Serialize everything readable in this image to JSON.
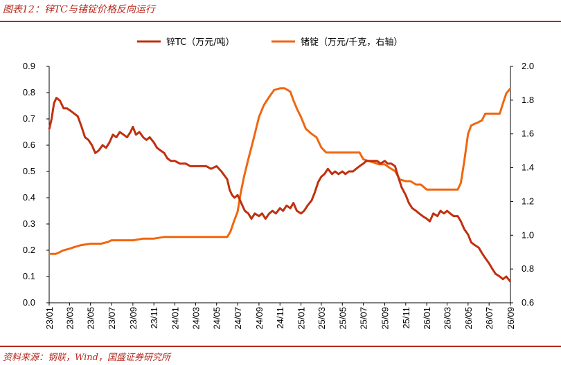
{
  "figure_title": "图表12：锌TC与锗锭价格反向运行",
  "source_note": "资料来源：钢联，Wind，国盛证券研究所",
  "colors": {
    "accent": "#b5281c",
    "zinc_tc": "#c0300e",
    "germanium": "#f0660e"
  },
  "chart_data": {
    "type": "line",
    "title": "",
    "legend_position": "top-center",
    "grid": false,
    "x_axis": {
      "type": "date",
      "range": [
        "2023-01",
        "2026-09"
      ],
      "tick_labels": [
        "23/01",
        "23/03",
        "23/05",
        "23/07",
        "23/09",
        "23/11",
        "24/01",
        "24/03",
        "24/05",
        "24/07",
        "24/09",
        "24/11",
        "25/01",
        "25/03",
        "25/05",
        "25/07",
        "25/09",
        "25/11",
        "26/01",
        "26/03",
        "26/05",
        "26/07",
        "26/09"
      ]
    },
    "y_left": {
      "range": [
        0,
        0.9
      ],
      "ticks": [
        "0.0",
        "0.1",
        "0.2",
        "0.3",
        "0.4",
        "0.5",
        "0.6",
        "0.7",
        "0.8",
        "0.9"
      ]
    },
    "y_right": {
      "range": [
        0.6,
        2.0
      ],
      "ticks": [
        "0.6",
        "0.8",
        "1.0",
        "1.2",
        "1.4",
        "1.6",
        "1.8",
        "2.0"
      ]
    },
    "series": [
      {
        "name": "锌TC（万元/吨）",
        "axis": "left",
        "color": "#c0300e",
        "points": [
          [
            "2023-01-01",
            0.66
          ],
          [
            "2023-01-08",
            0.7
          ],
          [
            "2023-01-15",
            0.76
          ],
          [
            "2023-01-22",
            0.78
          ],
          [
            "2023-02-01",
            0.77
          ],
          [
            "2023-02-12",
            0.74
          ],
          [
            "2023-02-22",
            0.74
          ],
          [
            "2023-03-05",
            0.73
          ],
          [
            "2023-03-15",
            0.72
          ],
          [
            "2023-03-25",
            0.71
          ],
          [
            "2023-04-05",
            0.67
          ],
          [
            "2023-04-15",
            0.63
          ],
          [
            "2023-04-25",
            0.62
          ],
          [
            "2023-05-05",
            0.6
          ],
          [
            "2023-05-15",
            0.57
          ],
          [
            "2023-05-25",
            0.58
          ],
          [
            "2023-06-05",
            0.6
          ],
          [
            "2023-06-15",
            0.59
          ],
          [
            "2023-06-25",
            0.61
          ],
          [
            "2023-07-05",
            0.64
          ],
          [
            "2023-07-15",
            0.63
          ],
          [
            "2023-07-25",
            0.65
          ],
          [
            "2023-08-05",
            0.64
          ],
          [
            "2023-08-15",
            0.63
          ],
          [
            "2023-08-25",
            0.65
          ],
          [
            "2023-09-01",
            0.67
          ],
          [
            "2023-09-10",
            0.64
          ],
          [
            "2023-09-20",
            0.65
          ],
          [
            "2023-10-01",
            0.63
          ],
          [
            "2023-10-10",
            0.62
          ],
          [
            "2023-10-20",
            0.63
          ],
          [
            "2023-11-01",
            0.61
          ],
          [
            "2023-11-10",
            0.59
          ],
          [
            "2023-11-20",
            0.58
          ],
          [
            "2023-12-01",
            0.57
          ],
          [
            "2023-12-10",
            0.55
          ],
          [
            "2023-12-20",
            0.54
          ],
          [
            "2024-01-01",
            0.54
          ],
          [
            "2024-01-15",
            0.53
          ],
          [
            "2024-02-01",
            0.53
          ],
          [
            "2024-02-15",
            0.52
          ],
          [
            "2024-03-01",
            0.52
          ],
          [
            "2024-03-15",
            0.52
          ],
          [
            "2024-04-01",
            0.52
          ],
          [
            "2024-04-15",
            0.51
          ],
          [
            "2024-05-01",
            0.52
          ],
          [
            "2024-05-15",
            0.5
          ],
          [
            "2024-06-01",
            0.47
          ],
          [
            "2024-06-08",
            0.43
          ],
          [
            "2024-06-15",
            0.41
          ],
          [
            "2024-06-22",
            0.4
          ],
          [
            "2024-07-01",
            0.41
          ],
          [
            "2024-07-08",
            0.39
          ],
          [
            "2024-07-15",
            0.37
          ],
          [
            "2024-07-22",
            0.35
          ],
          [
            "2024-08-01",
            0.34
          ],
          [
            "2024-08-10",
            0.32
          ],
          [
            "2024-08-20",
            0.34
          ],
          [
            "2024-09-01",
            0.33
          ],
          [
            "2024-09-10",
            0.34
          ],
          [
            "2024-09-20",
            0.32
          ],
          [
            "2024-10-01",
            0.34
          ],
          [
            "2024-10-10",
            0.35
          ],
          [
            "2024-10-20",
            0.34
          ],
          [
            "2024-11-01",
            0.36
          ],
          [
            "2024-11-10",
            0.35
          ],
          [
            "2024-11-20",
            0.37
          ],
          [
            "2024-12-01",
            0.36
          ],
          [
            "2024-12-10",
            0.38
          ],
          [
            "2024-12-20",
            0.35
          ],
          [
            "2025-01-01",
            0.34
          ],
          [
            "2025-01-10",
            0.35
          ],
          [
            "2025-01-20",
            0.37
          ],
          [
            "2025-02-01",
            0.39
          ],
          [
            "2025-02-10",
            0.42
          ],
          [
            "2025-02-20",
            0.46
          ],
          [
            "2025-03-01",
            0.48
          ],
          [
            "2025-03-10",
            0.49
          ],
          [
            "2025-03-20",
            0.51
          ],
          [
            "2025-04-01",
            0.49
          ],
          [
            "2025-04-10",
            0.5
          ],
          [
            "2025-04-20",
            0.49
          ],
          [
            "2025-05-01",
            0.5
          ],
          [
            "2025-05-10",
            0.49
          ],
          [
            "2025-05-20",
            0.5
          ],
          [
            "2025-06-01",
            0.5
          ],
          [
            "2025-06-10",
            0.51
          ],
          [
            "2025-06-20",
            0.52
          ],
          [
            "2025-07-01",
            0.53
          ],
          [
            "2025-07-10",
            0.54
          ],
          [
            "2025-07-20",
            0.54
          ],
          [
            "2025-08-01",
            0.54
          ],
          [
            "2025-08-10",
            0.54
          ],
          [
            "2025-08-20",
            0.53
          ],
          [
            "2025-09-01",
            0.54
          ],
          [
            "2025-09-10",
            0.53
          ],
          [
            "2025-09-20",
            0.53
          ],
          [
            "2025-10-01",
            0.52
          ],
          [
            "2025-10-10",
            0.48
          ],
          [
            "2025-10-20",
            0.44
          ],
          [
            "2025-11-01",
            0.41
          ],
          [
            "2025-11-10",
            0.38
          ],
          [
            "2025-11-20",
            0.36
          ],
          [
            "2025-12-01",
            0.35
          ],
          [
            "2025-12-10",
            0.34
          ],
          [
            "2025-12-20",
            0.33
          ],
          [
            "2026-01-01",
            0.32
          ],
          [
            "2026-01-10",
            0.31
          ],
          [
            "2026-01-20",
            0.34
          ],
          [
            "2026-02-01",
            0.33
          ],
          [
            "2026-02-10",
            0.35
          ],
          [
            "2026-02-20",
            0.34
          ],
          [
            "2026-03-01",
            0.35
          ],
          [
            "2026-03-10",
            0.34
          ],
          [
            "2026-03-20",
            0.33
          ],
          [
            "2026-04-01",
            0.33
          ],
          [
            "2026-04-10",
            0.31
          ],
          [
            "2026-04-20",
            0.28
          ],
          [
            "2026-05-01",
            0.26
          ],
          [
            "2026-05-10",
            0.23
          ],
          [
            "2026-05-20",
            0.22
          ],
          [
            "2026-06-01",
            0.21
          ],
          [
            "2026-06-10",
            0.19
          ],
          [
            "2026-06-20",
            0.17
          ],
          [
            "2026-07-01",
            0.15
          ],
          [
            "2026-07-10",
            0.13
          ],
          [
            "2026-07-20",
            0.11
          ],
          [
            "2026-08-01",
            0.1
          ],
          [
            "2026-08-10",
            0.09
          ],
          [
            "2026-08-20",
            0.1
          ],
          [
            "2026-09-01",
            0.08
          ]
        ]
      },
      {
        "name": "锗锭（万元/千克，右轴）",
        "axis": "right",
        "color": "#f0660e",
        "points": [
          [
            "2023-01-01",
            0.89
          ],
          [
            "2023-01-20",
            0.89
          ],
          [
            "2023-02-01",
            0.9
          ],
          [
            "2023-02-10",
            0.91
          ],
          [
            "2023-03-01",
            0.92
          ],
          [
            "2023-03-15",
            0.93
          ],
          [
            "2023-04-01",
            0.94
          ],
          [
            "2023-05-01",
            0.95
          ],
          [
            "2023-06-01",
            0.95
          ],
          [
            "2023-06-20",
            0.96
          ],
          [
            "2023-07-01",
            0.97
          ],
          [
            "2023-08-01",
            0.97
          ],
          [
            "2023-09-01",
            0.97
          ],
          [
            "2023-10-01",
            0.98
          ],
          [
            "2023-11-01",
            0.98
          ],
          [
            "2023-12-01",
            0.99
          ],
          [
            "2024-01-01",
            0.99
          ],
          [
            "2024-03-01",
            0.99
          ],
          [
            "2024-05-01",
            0.99
          ],
          [
            "2024-06-01",
            0.99
          ],
          [
            "2024-06-10",
            1.02
          ],
          [
            "2024-06-20",
            1.08
          ],
          [
            "2024-07-01",
            1.14
          ],
          [
            "2024-07-10",
            1.25
          ],
          [
            "2024-07-20",
            1.35
          ],
          [
            "2024-08-01",
            1.45
          ],
          [
            "2024-08-15",
            1.56
          ],
          [
            "2024-09-01",
            1.7
          ],
          [
            "2024-09-15",
            1.77
          ],
          [
            "2024-10-01",
            1.82
          ],
          [
            "2024-10-15",
            1.86
          ],
          [
            "2024-11-01",
            1.87
          ],
          [
            "2024-11-15",
            1.87
          ],
          [
            "2024-12-01",
            1.85
          ],
          [
            "2024-12-10",
            1.8
          ],
          [
            "2024-12-20",
            1.75
          ],
          [
            "2025-01-01",
            1.7
          ],
          [
            "2025-01-15",
            1.63
          ],
          [
            "2025-02-01",
            1.6
          ],
          [
            "2025-02-15",
            1.58
          ],
          [
            "2025-03-01",
            1.52
          ],
          [
            "2025-03-15",
            1.49
          ],
          [
            "2025-04-01",
            1.49
          ],
          [
            "2025-05-01",
            1.49
          ],
          [
            "2025-06-01",
            1.49
          ],
          [
            "2025-06-20",
            1.49
          ],
          [
            "2025-07-01",
            1.45
          ],
          [
            "2025-07-15",
            1.44
          ],
          [
            "2025-08-01",
            1.43
          ],
          [
            "2025-08-15",
            1.42
          ],
          [
            "2025-09-01",
            1.42
          ],
          [
            "2025-09-15",
            1.4
          ],
          [
            "2025-10-01",
            1.38
          ],
          [
            "2025-10-15",
            1.33
          ],
          [
            "2025-11-01",
            1.32
          ],
          [
            "2025-11-15",
            1.32
          ],
          [
            "2025-12-01",
            1.3
          ],
          [
            "2025-12-15",
            1.3
          ],
          [
            "2026-01-01",
            1.27
          ],
          [
            "2026-02-01",
            1.27
          ],
          [
            "2026-03-01",
            1.27
          ],
          [
            "2026-04-01",
            1.27
          ],
          [
            "2026-04-10",
            1.31
          ],
          [
            "2026-04-20",
            1.44
          ],
          [
            "2026-05-01",
            1.6
          ],
          [
            "2026-05-10",
            1.65
          ],
          [
            "2026-05-20",
            1.66
          ],
          [
            "2026-06-01",
            1.67
          ],
          [
            "2026-06-10",
            1.68
          ],
          [
            "2026-06-20",
            1.72
          ],
          [
            "2026-07-01",
            1.72
          ],
          [
            "2026-07-15",
            1.72
          ],
          [
            "2026-08-01",
            1.72
          ],
          [
            "2026-08-10",
            1.78
          ],
          [
            "2026-08-20",
            1.84
          ],
          [
            "2026-09-01",
            1.87
          ]
        ]
      }
    ]
  }
}
